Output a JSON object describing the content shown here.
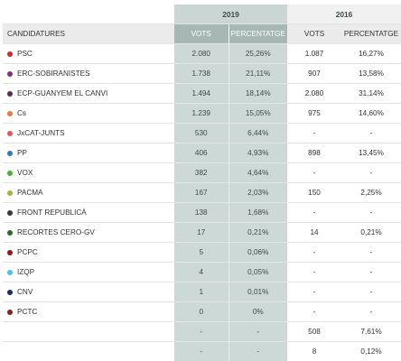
{
  "table": {
    "year_2019": "2019",
    "year_2016": "2016",
    "headers": {
      "candidatures": "CANDIDATURES",
      "votes_2019": "VOTS",
      "pct_2019": "PERCENTATGE",
      "votes_2016": "VOTS",
      "pct_2016": "PERCENTATGE"
    },
    "rows": [
      {
        "name": "PSC",
        "color": "#d8232a",
        "v2019": "2.080",
        "p2019": "25,26%",
        "v2016": "1.087",
        "p2016": "16,27%"
      },
      {
        "name": "ERC-SOBIRANISTES",
        "color": "#8d2f7c",
        "v2019": "1.738",
        "p2019": "21,11%",
        "v2016": "907",
        "p2016": "13,58%"
      },
      {
        "name": "ECP-GUANYEM EL CANVI",
        "color": "#5b2c53",
        "v2019": "1.494",
        "p2019": "18,14%",
        "v2016": "2.080",
        "p2016": "31,14%"
      },
      {
        "name": "Cs",
        "color": "#ee7a3a",
        "v2019": "1.239",
        "p2019": "15,05%",
        "v2016": "975",
        "p2016": "14,60%"
      },
      {
        "name": "JxCAT-JUNTS",
        "color": "#e05a5a",
        "v2019": "530",
        "p2019": "6,44%",
        "v2016": "-",
        "p2016": "-"
      },
      {
        "name": "PP",
        "color": "#2e7bbd",
        "v2019": "406",
        "p2019": "4,93%",
        "v2016": "898",
        "p2016": "13,45%"
      },
      {
        "name": "VOX",
        "color": "#44b53c",
        "v2019": "382",
        "p2019": "4,64%",
        "v2016": "-",
        "p2016": "-"
      },
      {
        "name": "PACMA",
        "color": "#a4b33a",
        "v2019": "167",
        "p2019": "2,03%",
        "v2016": "150",
        "p2016": "2,25%"
      },
      {
        "name": "FRONT REPUBLICÀ",
        "color": "#3a3a3a",
        "v2019": "138",
        "p2019": "1,68%",
        "v2016": "-",
        "p2016": "-"
      },
      {
        "name": "RECORTES CERO-GV",
        "color": "#2a6b2a",
        "v2019": "17",
        "p2019": "0,21%",
        "v2016": "14",
        "p2016": "0,21%"
      },
      {
        "name": "PCPC",
        "color": "#8b1c1c",
        "v2019": "5",
        "p2019": "0,06%",
        "v2016": "-",
        "p2016": "-"
      },
      {
        "name": "IZQP",
        "color": "#45c3e8",
        "v2019": "4",
        "p2019": "0,05%",
        "v2016": "-",
        "p2016": "-"
      },
      {
        "name": "CNV",
        "color": "#1d2b6b",
        "v2019": "1",
        "p2019": "0,01%",
        "v2016": "-",
        "p2016": "-"
      },
      {
        "name": "PCTC",
        "color": "#8b1c1c",
        "v2019": "0",
        "p2019": "0%",
        "v2016": "-",
        "p2016": "-"
      },
      {
        "name": "",
        "color": "",
        "v2019": "-",
        "p2019": "-",
        "v2016": "508",
        "p2016": "7,61%"
      },
      {
        "name": "",
        "color": "",
        "v2019": "-",
        "p2019": "-",
        "v2016": "8",
        "p2016": "0,12%"
      }
    ]
  }
}
